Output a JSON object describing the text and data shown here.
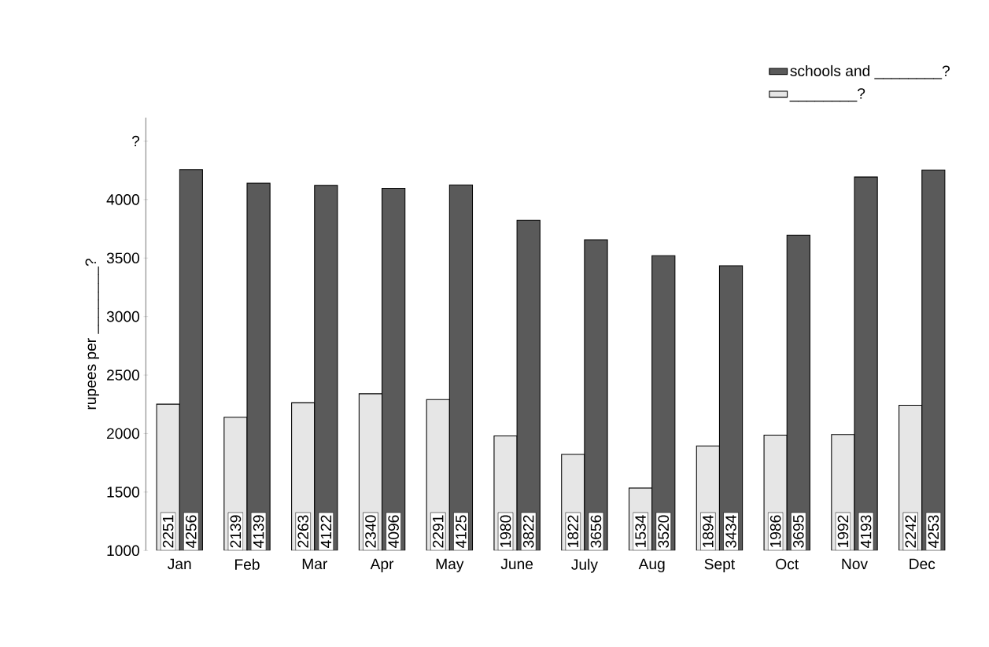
{
  "chart_data": {
    "type": "bar",
    "ylabel": "rupees per ________?",
    "categories": [
      "Jan",
      "Feb",
      "Mar",
      "Apr",
      "May",
      "June",
      "July",
      "Aug",
      "Sept",
      "Oct",
      "Nov",
      "Dec"
    ],
    "series": [
      {
        "name": "________?",
        "color": "#e6e6e6",
        "values": [
          2251,
          2139,
          2263,
          2340,
          2291,
          1980,
          1822,
          1534,
          1894,
          1986,
          1992,
          2242
        ]
      },
      {
        "name": "schools and ________?",
        "color": "#5a5a5a",
        "values": [
          4256,
          4139,
          4122,
          4096,
          4125,
          3822,
          3656,
          3520,
          3434,
          3695,
          4193,
          4253
        ]
      }
    ],
    "ylim": [
      1000,
      4700
    ],
    "yticks": [
      1000,
      1500,
      2000,
      2500,
      3000,
      3500,
      4000,
      {
        "value": 4500,
        "label": "?"
      }
    ],
    "data_labels": true,
    "legend": "top right",
    "grid": false
  }
}
